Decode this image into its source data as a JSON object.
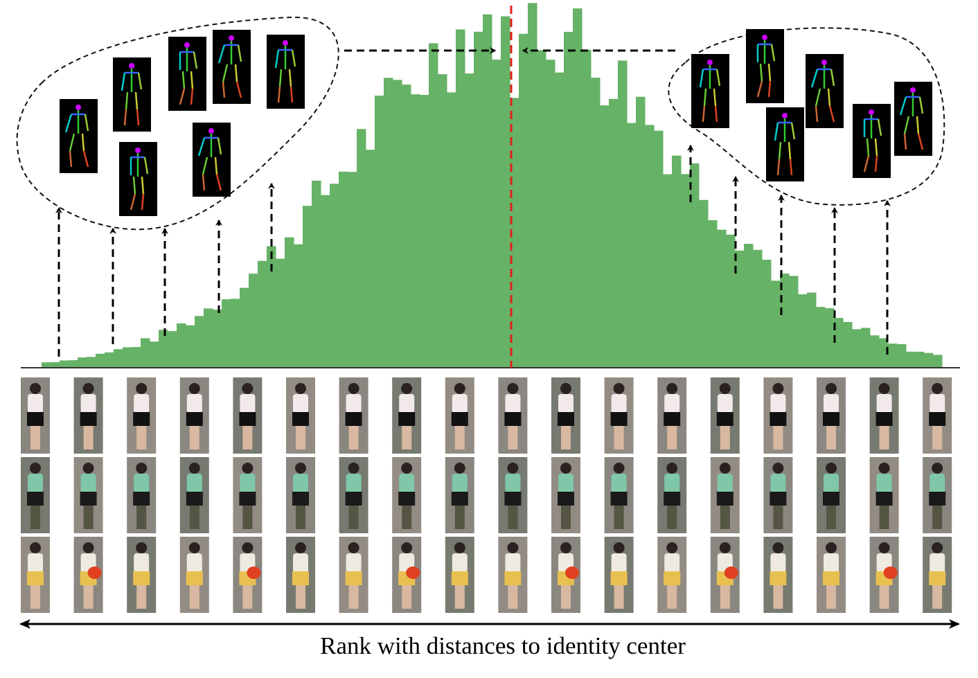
{
  "caption": "Rank with distances to identity center"
}
